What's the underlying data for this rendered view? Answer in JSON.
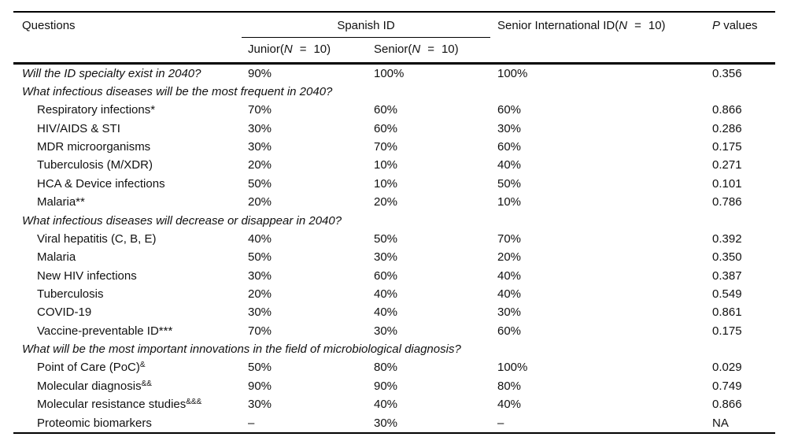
{
  "header": {
    "questions_label": "Questions",
    "spanish": {
      "label": "Spanish ID",
      "junior": {
        "prefix": "Junior(",
        "n": "N",
        "eq": "=",
        "count": "10)"
      },
      "senior": {
        "prefix": "Senior(",
        "n": "N",
        "eq": "=",
        "count": "10)"
      }
    },
    "senior_international": {
      "prefix": "Senior International ID(",
      "n": "N",
      "eq": "=",
      "count": "10)"
    },
    "p_values": {
      "p": "P",
      "rest": "values"
    }
  },
  "rows": [
    {
      "type": "q",
      "label": "Will the ID specialty exist in 2040?",
      "values": [
        "90%",
        "100%",
        "100%",
        "0.356"
      ]
    },
    {
      "type": "s",
      "label": "What infectious diseases will be the most frequent in 2040?",
      "values": [
        "",
        "",
        "",
        ""
      ]
    },
    {
      "type": "i",
      "label": "Respiratory infections*",
      "values": [
        "70%",
        "60%",
        "60%",
        "0.866"
      ]
    },
    {
      "type": "i",
      "label": "HIV/AIDS & STI",
      "values": [
        "30%",
        "60%",
        "30%",
        "0.286"
      ]
    },
    {
      "type": "i",
      "label": "MDR microorganisms",
      "values": [
        "30%",
        "70%",
        "60%",
        "0.175"
      ]
    },
    {
      "type": "i",
      "label": "Tuberculosis (M/XDR)",
      "values": [
        "20%",
        "10%",
        "40%",
        "0.271"
      ]
    },
    {
      "type": "i",
      "label": "HCA & Device infections",
      "values": [
        "50%",
        "10%",
        "50%",
        "0.101"
      ]
    },
    {
      "type": "i",
      "label": "Malaria**",
      "values": [
        "20%",
        "20%",
        "10%",
        "0.786"
      ]
    },
    {
      "type": "s",
      "label": "What infectious diseases will decrease or disappear in 2040?",
      "values": [
        "",
        "",
        "",
        ""
      ]
    },
    {
      "type": "i",
      "label": "Viral hepatitis (C, B, E)",
      "values": [
        "40%",
        "50%",
        "70%",
        "0.392"
      ]
    },
    {
      "type": "i",
      "label": "Malaria",
      "values": [
        "50%",
        "30%",
        "20%",
        "0.350"
      ]
    },
    {
      "type": "i",
      "label": "New HIV infections",
      "values": [
        "30%",
        "60%",
        "40%",
        "0.387"
      ]
    },
    {
      "type": "i",
      "label": "Tuberculosis",
      "values": [
        "20%",
        "40%",
        "40%",
        "0.549"
      ]
    },
    {
      "type": "i",
      "label": "COVID-19",
      "values": [
        "30%",
        "40%",
        "30%",
        "0.861"
      ]
    },
    {
      "type": "i",
      "label": "Vaccine-preventable ID***",
      "values": [
        "70%",
        "30%",
        "60%",
        "0.175"
      ]
    },
    {
      "type": "s",
      "label": "What will be the most important innovations in the field of microbiological diagnosis?",
      "values": [
        "",
        "",
        "",
        ""
      ]
    },
    {
      "type": "i",
      "label": "Point of Care (PoC)",
      "sup": "&",
      "values": [
        "50%",
        "80%",
        "100%",
        "0.029"
      ]
    },
    {
      "type": "i",
      "label": "Molecular diagnosis",
      "sup": "&&",
      "values": [
        "90%",
        "90%",
        "80%",
        "0.749"
      ]
    },
    {
      "type": "i",
      "label": "Molecular resistance studies",
      "sup": "&&&",
      "values": [
        "30%",
        "40%",
        "40%",
        "0.866"
      ]
    },
    {
      "type": "i",
      "label": "Proteomic biomarkers",
      "values": [
        "–",
        "30%",
        "–",
        "NA"
      ]
    }
  ]
}
